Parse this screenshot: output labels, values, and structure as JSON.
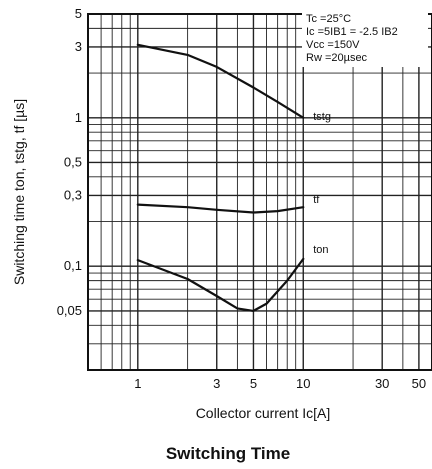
{
  "chart_data": {
    "type": "line",
    "title": "Switching Time",
    "xlabel": "Collector current   Ic[A]",
    "ylabel": "Switching time  ton, tstg, tf [µs]",
    "x_scale": "log",
    "y_scale": "log",
    "xlim": [
      0.5,
      60
    ],
    "ylim": [
      0.02,
      5
    ],
    "grid": true,
    "x_ticks": [
      {
        "value": 1,
        "label": "1"
      },
      {
        "value": 3,
        "label": "3"
      },
      {
        "value": 5,
        "label": "5"
      },
      {
        "value": 10,
        "label": "10"
      },
      {
        "value": 30,
        "label": "30"
      },
      {
        "value": 50,
        "label": "50"
      }
    ],
    "y_ticks": [
      {
        "value": 5,
        "label": "5"
      },
      {
        "value": 3,
        "label": "3"
      },
      {
        "value": 1,
        "label": "1"
      },
      {
        "value": 0.5,
        "label": "0,5"
      },
      {
        "value": 0.3,
        "label": "0,3"
      },
      {
        "value": 0.1,
        "label": "0,1"
      },
      {
        "value": 0.05,
        "label": "0,05"
      }
    ],
    "annotations": [
      "Tc  =25°C",
      "Ic =5IB1 = -2.5 IB2",
      "Vcc =150V",
      "Rw  =20µsec"
    ],
    "series": [
      {
        "name": "tstg",
        "x": [
          1,
          2,
          3,
          5,
          7,
          10
        ],
        "y": [
          3.1,
          2.65,
          2.2,
          1.6,
          1.28,
          1.0
        ]
      },
      {
        "name": "tf",
        "x": [
          1,
          2,
          3,
          5,
          7,
          10
        ],
        "y": [
          0.26,
          0.25,
          0.24,
          0.23,
          0.235,
          0.25
        ]
      },
      {
        "name": "ton",
        "x": [
          1,
          2,
          3,
          4,
          5,
          6,
          8,
          10
        ],
        "y": [
          0.11,
          0.082,
          0.063,
          0.052,
          0.05,
          0.056,
          0.08,
          0.112
        ]
      }
    ]
  }
}
